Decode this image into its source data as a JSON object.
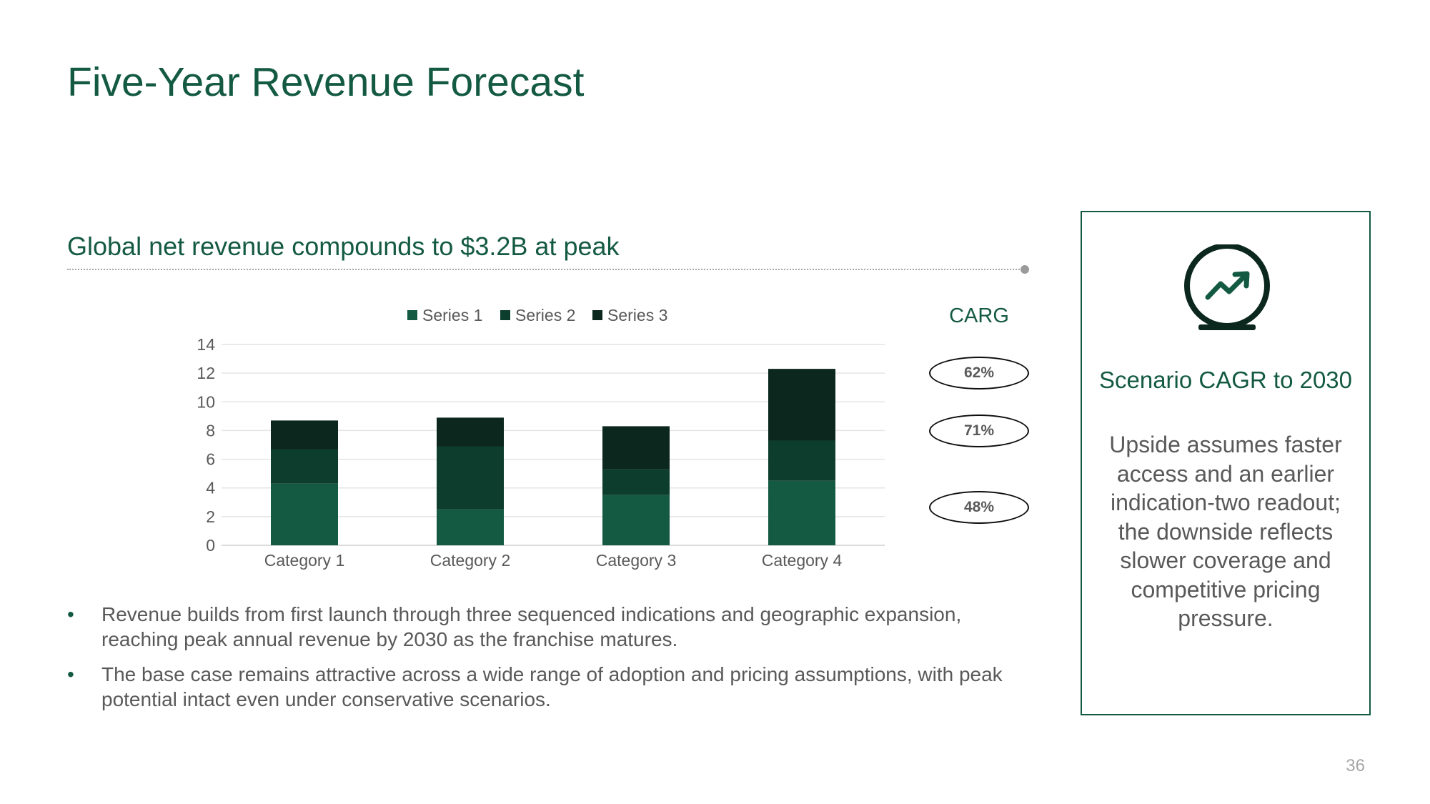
{
  "slide": {
    "title": "Five-Year Revenue Forecast",
    "subtitle": "Global net revenue compounds to $3.2B at peak",
    "page_number": "36"
  },
  "cagr": {
    "heading": "CARG",
    "values": [
      "62%",
      "71%",
      "48%"
    ]
  },
  "bullets": [
    "Revenue builds from first launch through three sequenced indications and geographic expansion, reaching peak annual revenue by 2030 as the franchise matures.",
    "The base case remains attractive across a wide range of adoption and pricing assumptions, with peak potential intact even under conservative scenarios."
  ],
  "side_panel": {
    "icon": "trend-up-icon",
    "heading": "Scenario CAGR to 2030",
    "body": "Upside assumes faster access and an earlier indication-two readout; the downside reflects slower coverage and competitive pricing pressure."
  },
  "colors": {
    "accent": "#145a43",
    "series": [
      "#145a43",
      "#0d3d2d",
      "#0b271e"
    ],
    "text": "#595959"
  },
  "chart_data": {
    "type": "bar",
    "stacked": true,
    "categories": [
      "Category 1",
      "Category 2",
      "Category 3",
      "Category 4"
    ],
    "series": [
      {
        "name": "Series 1",
        "values": [
          4.3,
          2.5,
          3.5,
          4.5
        ]
      },
      {
        "name": "Series 2",
        "values": [
          2.4,
          4.4,
          1.8,
          2.8
        ]
      },
      {
        "name": "Series 3",
        "values": [
          2.0,
          2.0,
          3.0,
          5.0
        ]
      }
    ],
    "ylim": [
      0,
      14
    ],
    "yticks": [
      0,
      2,
      4,
      6,
      8,
      10,
      12,
      14
    ],
    "grid": true,
    "legend": "top"
  }
}
